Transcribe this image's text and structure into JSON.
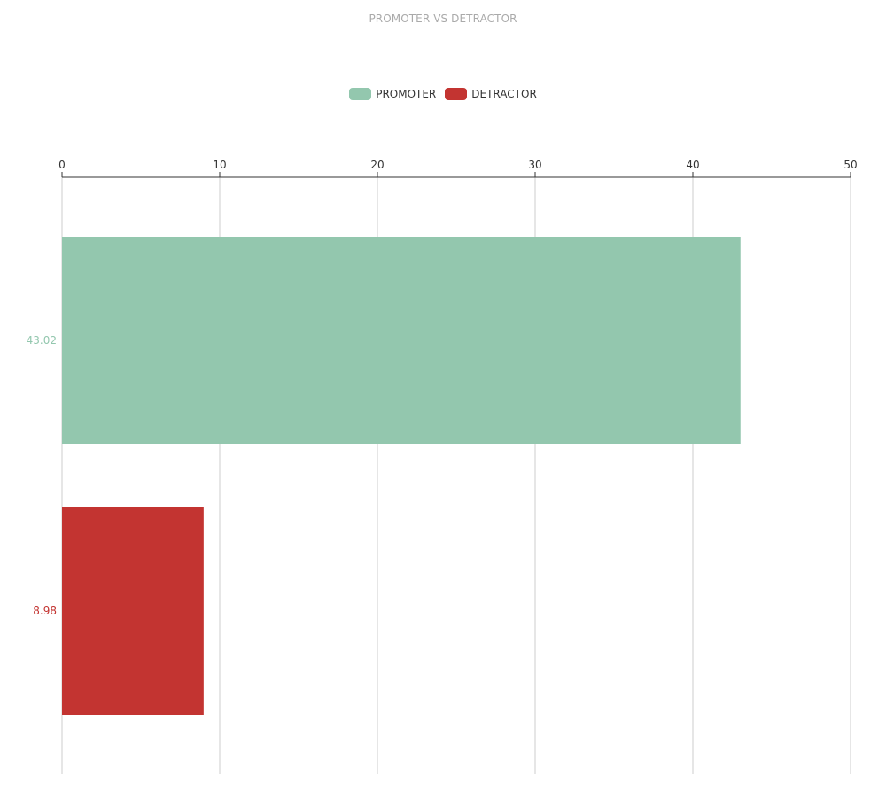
{
  "chart_data": {
    "type": "bar",
    "orientation": "horizontal",
    "title": "PROMOTER VS DETRACTOR",
    "xlim": [
      0,
      50
    ],
    "x_ticks": [
      "0",
      "10",
      "20",
      "30",
      "40",
      "50"
    ],
    "x_axis_position": "top",
    "grid": true,
    "legend_position": "top-center",
    "series": [
      {
        "name": "PROMOTER",
        "value": 43.02,
        "label": "43.02",
        "color": "#93c7ae"
      },
      {
        "name": "DETRACTOR",
        "value": 8.98,
        "label": "8.98",
        "color": "#c33431"
      }
    ]
  }
}
